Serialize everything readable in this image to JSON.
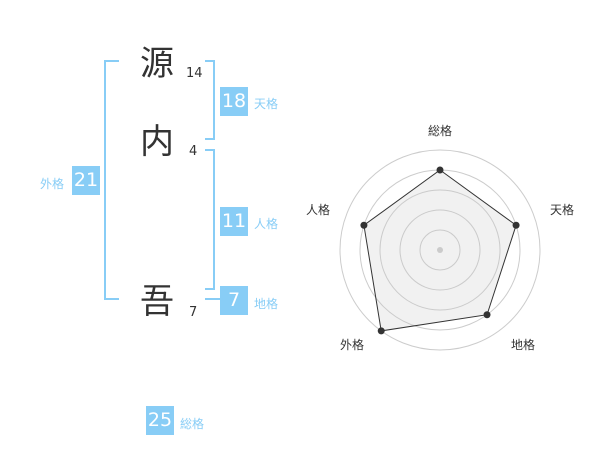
{
  "name": {
    "chars": [
      {
        "char": "源",
        "strokes": "14"
      },
      {
        "char": "内",
        "strokes": "4"
      },
      {
        "char": "吾",
        "strokes": "7"
      }
    ]
  },
  "scores": {
    "tenkaku": {
      "value": "18",
      "label": "天格"
    },
    "jinkaku": {
      "value": "11",
      "label": "人格"
    },
    "chikaku": {
      "value": "7",
      "label": "地格"
    },
    "gaikaku": {
      "value": "21",
      "label": "外格"
    },
    "soukaku": {
      "value": "25",
      "label": "総格"
    }
  },
  "colors": {
    "accent": "#88cdf6"
  },
  "chart_data": {
    "type": "radar",
    "axes": [
      "総格",
      "天格",
      "地格",
      "外格",
      "人格"
    ],
    "values": [
      4,
      4,
      4,
      5,
      4
    ],
    "range": [
      0,
      5
    ],
    "rings": 5
  }
}
